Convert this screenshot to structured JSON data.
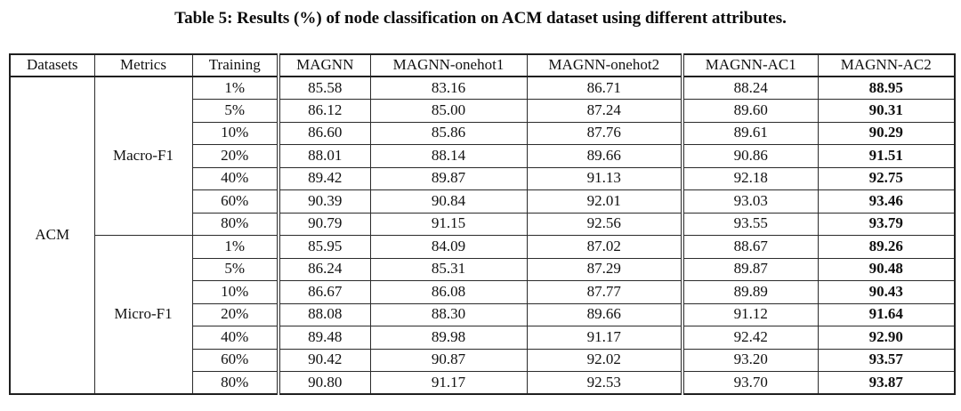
{
  "title": "Table 5: Results (%) of node classification on ACM dataset using different attributes.",
  "colors": {
    "background": "#ffffff",
    "text": "#111111",
    "border": "#2b2b2b"
  },
  "table": {
    "headers": [
      "Datasets",
      "Metrics",
      "Training",
      "MAGNN",
      "MAGNN-onehot1",
      "MAGNN-onehot2",
      "MAGNN-AC1",
      "MAGNN-AC2"
    ],
    "dataset": "ACM",
    "emphasis_column": "MAGNN-AC2",
    "sections": [
      {
        "metric": "Macro-F1",
        "rows": [
          {
            "training": "1%",
            "values": [
              "85.58",
              "83.16",
              "86.71",
              "88.24",
              "88.95"
            ]
          },
          {
            "training": "5%",
            "values": [
              "86.12",
              "85.00",
              "87.24",
              "89.60",
              "90.31"
            ]
          },
          {
            "training": "10%",
            "values": [
              "86.60",
              "85.86",
              "87.76",
              "89.61",
              "90.29"
            ]
          },
          {
            "training": "20%",
            "values": [
              "88.01",
              "88.14",
              "89.66",
              "90.86",
              "91.51"
            ]
          },
          {
            "training": "40%",
            "values": [
              "89.42",
              "89.87",
              "91.13",
              "92.18",
              "92.75"
            ]
          },
          {
            "training": "60%",
            "values": [
              "90.39",
              "90.84",
              "92.01",
              "93.03",
              "93.46"
            ]
          },
          {
            "training": "80%",
            "values": [
              "90.79",
              "91.15",
              "92.56",
              "93.55",
              "93.79"
            ]
          }
        ]
      },
      {
        "metric": "Micro-F1",
        "rows": [
          {
            "training": "1%",
            "values": [
              "85.95",
              "84.09",
              "87.02",
              "88.67",
              "89.26"
            ]
          },
          {
            "training": "5%",
            "values": [
              "86.24",
              "85.31",
              "87.29",
              "89.87",
              "90.48"
            ]
          },
          {
            "training": "10%",
            "values": [
              "86.67",
              "86.08",
              "87.77",
              "89.89",
              "90.43"
            ]
          },
          {
            "training": "20%",
            "values": [
              "88.08",
              "88.30",
              "89.66",
              "91.12",
              "91.64"
            ]
          },
          {
            "training": "40%",
            "values": [
              "89.48",
              "89.98",
              "91.17",
              "92.42",
              "92.90"
            ]
          },
          {
            "training": "60%",
            "values": [
              "90.42",
              "90.87",
              "92.02",
              "93.20",
              "93.57"
            ]
          },
          {
            "training": "80%",
            "values": [
              "90.80",
              "91.17",
              "92.53",
              "93.70",
              "93.87"
            ]
          }
        ]
      }
    ]
  }
}
